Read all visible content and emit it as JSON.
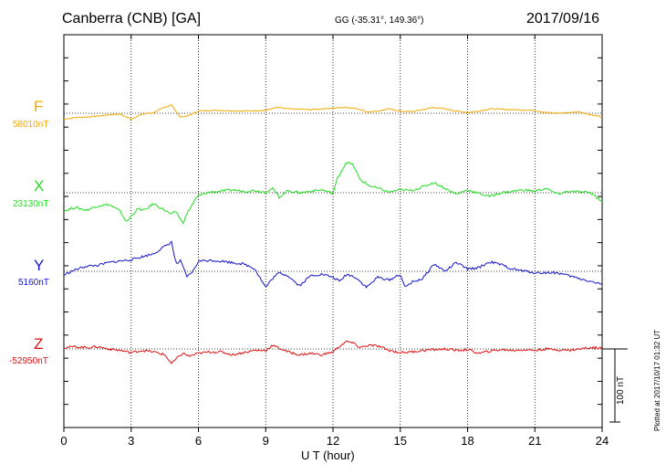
{
  "header": {
    "title": "Canberra (CNB)  [GA]",
    "coords": "GG (-35.31°, 149.36°)",
    "date": "2017/09/16"
  },
  "footer": {
    "plotted": "Plotted at 2017/10/17 01:32 UT",
    "scale": "100 nT"
  },
  "colors": {
    "F": "#f5a800",
    "X": "#22dd22",
    "Y": "#1414cc",
    "Z": "#e01010"
  },
  "chart_data": {
    "type": "line",
    "title": "Canberra (CNB)  [GA]",
    "xlabel": "U T (hour)",
    "ylabel": "",
    "xlim": [
      0,
      24
    ],
    "xticks": [
      0,
      3,
      6,
      9,
      12,
      15,
      18,
      21,
      24
    ],
    "y_unit": "nT",
    "scale_bar_nT": 100,
    "grid": true,
    "series": [
      {
        "name": "F",
        "baseline": 58010,
        "baseline_label": "58010nT",
        "x": [
          0,
          0.5,
          1,
          1.5,
          2,
          2.5,
          3,
          3.5,
          4,
          4.5,
          4.8,
          5.0,
          5.2,
          5.5,
          6,
          6.5,
          7,
          8,
          9,
          9.5,
          10,
          11,
          12,
          12.5,
          13,
          13.5,
          14,
          14.5,
          15,
          15.5,
          16,
          16.5,
          17,
          17.5,
          18,
          18.5,
          19,
          20,
          21,
          21.5,
          22,
          23,
          23.5,
          24
        ],
        "delta": [
          -8,
          -6,
          -5,
          -4,
          -2,
          -1,
          -8,
          -1,
          1,
          8,
          12,
          2,
          -5,
          -4,
          3,
          4,
          4,
          3,
          4,
          8,
          6,
          5,
          7,
          8,
          7,
          2,
          3,
          6,
          3,
          2,
          5,
          8,
          6,
          3,
          1,
          3,
          6,
          5,
          4,
          1,
          0,
          2,
          -2,
          -5
        ]
      },
      {
        "name": "X",
        "baseline": 23130,
        "baseline_label": "23130nT",
        "x": [
          0,
          0.5,
          1,
          1.5,
          2,
          2.5,
          2.8,
          3,
          3.3,
          3.6,
          4,
          4.4,
          4.8,
          5.0,
          5.3,
          5.5,
          5.8,
          6,
          6.5,
          7,
          7.5,
          8,
          8.5,
          9,
          9.3,
          9.6,
          10,
          10.5,
          11,
          11.5,
          12,
          12.2,
          12.6,
          12.9,
          13.2,
          13.6,
          14,
          14.5,
          15,
          15.5,
          16,
          16.5,
          17,
          17.5,
          18,
          18.5,
          19,
          19.5,
          20,
          20.5,
          21,
          21.5,
          22,
          22.5,
          23,
          23.5,
          24
        ],
        "delta": [
          -25,
          -20,
          -24,
          -18,
          -16,
          -25,
          -40,
          -32,
          -22,
          -24,
          -15,
          -22,
          -30,
          -25,
          -42,
          -28,
          -12,
          -4,
          1,
          2,
          4,
          2,
          3,
          1,
          6,
          -6,
          3,
          0,
          2,
          4,
          -1,
          20,
          42,
          38,
          18,
          10,
          6,
          1,
          4,
          3,
          8,
          14,
          6,
          -2,
          4,
          -1,
          -5,
          0,
          2,
          4,
          2,
          6,
          -2,
          2,
          1,
          0,
          -12
        ]
      },
      {
        "name": "Y",
        "baseline": 5160,
        "baseline_label": "5160nT",
        "x": [
          0,
          0.5,
          1,
          1.5,
          2,
          2.5,
          3,
          3.5,
          4,
          4.5,
          4.8,
          5.0,
          5.2,
          5.5,
          5.8,
          6,
          6.5,
          7,
          8,
          8.5,
          9,
          9.3,
          9.6,
          10,
          10.5,
          11,
          11.5,
          12,
          12.3,
          12.6,
          13,
          13.5,
          14,
          14.5,
          15,
          15.2,
          15.5,
          16,
          16.5,
          17,
          17.5,
          18,
          18.5,
          19,
          19.5,
          20,
          21,
          22,
          22.5,
          23,
          23.5,
          24
        ],
        "delta": [
          -5,
          2,
          7,
          8,
          12,
          14,
          16,
          20,
          24,
          34,
          40,
          10,
          14,
          -8,
          2,
          14,
          15,
          14,
          10,
          4,
          -22,
          -10,
          -2,
          -6,
          -20,
          -6,
          -4,
          -8,
          -14,
          -4,
          -8,
          -22,
          -8,
          -12,
          -4,
          -22,
          -15,
          -10,
          10,
          0,
          12,
          3,
          5,
          13,
          9,
          3,
          -2,
          -2,
          -6,
          -10,
          -14,
          -18
        ]
      },
      {
        "name": "Z",
        "baseline": -52950,
        "baseline_label": "-52950nT",
        "x": [
          0,
          0.5,
          1,
          1.5,
          2,
          2.5,
          3,
          3.5,
          4,
          4.5,
          4.8,
          5.0,
          5.3,
          5.6,
          6,
          6.5,
          7,
          7.5,
          8,
          8.5,
          9,
          9.3,
          9.6,
          10,
          10.5,
          11,
          11.5,
          12,
          12.3,
          12.6,
          12.9,
          13.2,
          13.6,
          14,
          14.5,
          15,
          15.5,
          16,
          16.5,
          17,
          17.5,
          18,
          18.5,
          19,
          19.5,
          20,
          20.5,
          21,
          21.5,
          22,
          22.5,
          23,
          23.5,
          24
        ],
        "delta": [
          2,
          3,
          2,
          3,
          0,
          -2,
          -5,
          -2,
          -4,
          -8,
          -20,
          -14,
          -6,
          -10,
          -6,
          -4,
          -4,
          -8,
          -5,
          -2,
          -2,
          5,
          1,
          -4,
          -8,
          -6,
          -8,
          -4,
          4,
          10,
          8,
          2,
          5,
          4,
          -2,
          -5,
          -4,
          -2,
          -1,
          0,
          -2,
          -1,
          -6,
          -3,
          -1,
          -2,
          -1,
          -2,
          0,
          -1,
          -2,
          0,
          2,
          1
        ]
      }
    ]
  }
}
